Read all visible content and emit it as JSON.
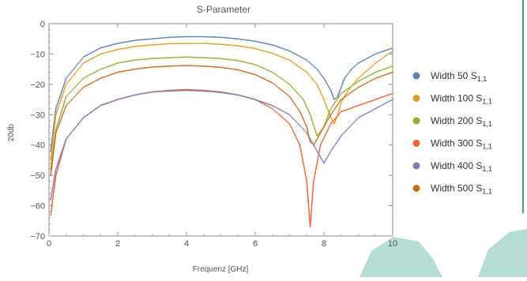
{
  "chart_data": {
    "type": "scatter",
    "title": "S-Parameter",
    "xlabel": "Frequenz [GHz]",
    "ylabel": "20db",
    "xlim": [
      0,
      10
    ],
    "ylim": [
      -70,
      0
    ],
    "xticks": [
      0,
      2,
      4,
      6,
      8,
      10
    ],
    "yticks": [
      0,
      -10,
      -20,
      -30,
      -40,
      -50,
      -60,
      -70
    ],
    "grid": false,
    "legend_position": "right",
    "series": [
      {
        "name": "Width 50",
        "subscript": "1,1",
        "color": "#5e81b5",
        "x": [
          0.05,
          0.2,
          0.5,
          1,
          1.5,
          2,
          2.5,
          3,
          3.5,
          4,
          4.5,
          5,
          5.5,
          6,
          6.5,
          7,
          7.5,
          7.8,
          8.0,
          8.2,
          8.3,
          8.4,
          8.6,
          8.8,
          9.0,
          9.5,
          10
        ],
        "y": [
          -42,
          -28,
          -18,
          -11,
          -8,
          -6.5,
          -5.5,
          -5,
          -4.5,
          -4.3,
          -4.3,
          -4.5,
          -5,
          -5.8,
          -7,
          -9,
          -12,
          -15,
          -18,
          -22,
          -25,
          -24,
          -18,
          -15,
          -13,
          -10,
          -8
        ]
      },
      {
        "name": "Width 100",
        "subscript": "1,1",
        "color": "#e19c24",
        "x": [
          0.05,
          0.2,
          0.5,
          1,
          1.5,
          2,
          2.5,
          3,
          3.5,
          4,
          4.5,
          5,
          5.5,
          6,
          6.5,
          7,
          7.5,
          7.8,
          8.0,
          8.2,
          8.3,
          8.4,
          8.5,
          8.7,
          9.0,
          9.5,
          10
        ],
        "y": [
          -45,
          -30,
          -20,
          -13,
          -10,
          -8.5,
          -7.5,
          -7,
          -6.6,
          -6.5,
          -6.5,
          -6.8,
          -7.3,
          -8.2,
          -9.8,
          -12,
          -16,
          -20,
          -25,
          -31,
          -33,
          -30,
          -26,
          -22,
          -18,
          -13,
          -9
        ]
      },
      {
        "name": "Width 200",
        "subscript": "1,1",
        "color": "#8fb032",
        "x": [
          0.05,
          0.2,
          0.5,
          1,
          1.5,
          2,
          2.5,
          3,
          3.5,
          4,
          4.5,
          5,
          5.5,
          6,
          6.5,
          7,
          7.4,
          7.6,
          7.8,
          8.0,
          8.2,
          8.5,
          9.0,
          9.5,
          10
        ],
        "y": [
          -48,
          -35,
          -24,
          -18,
          -15,
          -13,
          -12,
          -11.5,
          -11.2,
          -11,
          -11.2,
          -11.5,
          -12.2,
          -13.5,
          -16,
          -20,
          -25,
          -30,
          -37,
          -34,
          -28,
          -23,
          -19,
          -16,
          -14
        ]
      },
      {
        "name": "Width 300",
        "subscript": "1,1",
        "color": "#eb6235",
        "x": [
          0.05,
          0.2,
          0.5,
          1,
          1.5,
          2,
          2.5,
          3,
          3.5,
          4,
          4.5,
          5,
          5.5,
          6,
          6.5,
          7,
          7.3,
          7.5,
          7.6,
          7.7,
          7.9,
          8.2,
          8.5,
          9.0,
          9.5,
          10
        ],
        "y": [
          -63,
          -50,
          -38,
          -31,
          -27,
          -25,
          -23.5,
          -22.5,
          -22,
          -21.7,
          -22,
          -22.5,
          -23.5,
          -25,
          -28,
          -33,
          -40,
          -52,
          -67,
          -52,
          -40,
          -33,
          -29,
          -27,
          -25,
          -23
        ]
      },
      {
        "name": "Width 400",
        "subscript": "1,1",
        "color": "#8778b3",
        "x": [
          0.05,
          0.2,
          0.5,
          1,
          1.5,
          2,
          2.5,
          3,
          3.5,
          4,
          4.5,
          5,
          5.5,
          6,
          6.5,
          7,
          7.5,
          7.8,
          8.0,
          8.2,
          8.5,
          9.0,
          9.5,
          10
        ],
        "y": [
          -58,
          -48,
          -38,
          -31,
          -27,
          -25,
          -23.5,
          -22.5,
          -22.2,
          -22,
          -22.2,
          -22.7,
          -23.5,
          -25,
          -27,
          -30,
          -36,
          -42,
          -46,
          -42,
          -37,
          -31,
          -28,
          -25
        ]
      },
      {
        "name": "Width 500",
        "subscript": "1,1",
        "color": "#c56e1a",
        "x": [
          0.05,
          0.2,
          0.5,
          1,
          1.5,
          2,
          2.5,
          3,
          3.5,
          4,
          4.5,
          5,
          5.5,
          6,
          6.5,
          7,
          7.3,
          7.5,
          7.6,
          7.7,
          7.9,
          8.2,
          8.5,
          9.0,
          9.5,
          10
        ],
        "y": [
          -50,
          -36,
          -27,
          -21,
          -18,
          -16,
          -15,
          -14.3,
          -14,
          -13.8,
          -14,
          -14.4,
          -15.2,
          -16.8,
          -19.5,
          -24,
          -29,
          -34,
          -39,
          -40,
          -36,
          -30,
          -25,
          -21,
          -18,
          -16
        ]
      }
    ]
  }
}
